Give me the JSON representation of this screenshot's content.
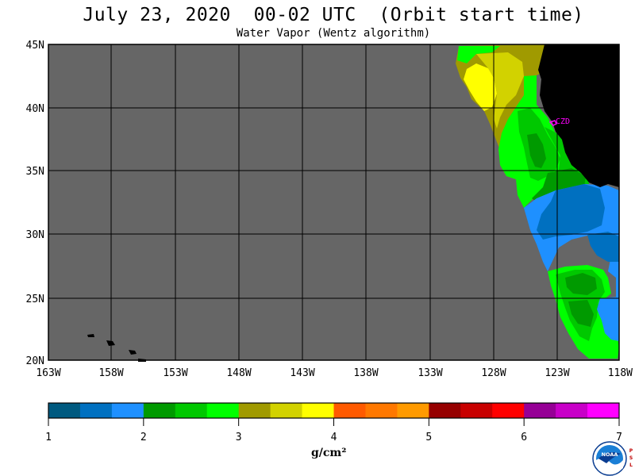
{
  "header": {
    "title": "July 23, 2020  00-02 UTC  (Orbit start time)",
    "subtitle": "Water Vapor (Wentz algorithm)"
  },
  "map": {
    "lat_labels": [
      "45N",
      "40N",
      "35N",
      "30N",
      "25N",
      "20N"
    ],
    "lon_labels": [
      "163W",
      "158W",
      "153W",
      "148W",
      "143W",
      "138W",
      "133W",
      "128W",
      "123W",
      "118W"
    ],
    "station_label": "CZD",
    "colors": {
      "no_data": "#666666",
      "land": "#000000",
      "grid": "#000000",
      "station": "#ff00ff"
    }
  },
  "colorbar": {
    "ticks": [
      "1",
      "2",
      "3",
      "4",
      "5",
      "6",
      "7"
    ],
    "units": "g/cm²",
    "colors": [
      "#005a80",
      "#0070c0",
      "#1e90ff",
      "#009a00",
      "#00c800",
      "#00ff00",
      "#a09a00",
      "#d2d200",
      "#ffff00",
      "#ff5a00",
      "#ff7800",
      "#ff9a00",
      "#960000",
      "#c80000",
      "#ff0000",
      "#960096",
      "#c800c8",
      "#ff00ff"
    ]
  },
  "logo": {
    "text": "NOAA",
    "side_text": "PSL"
  }
}
